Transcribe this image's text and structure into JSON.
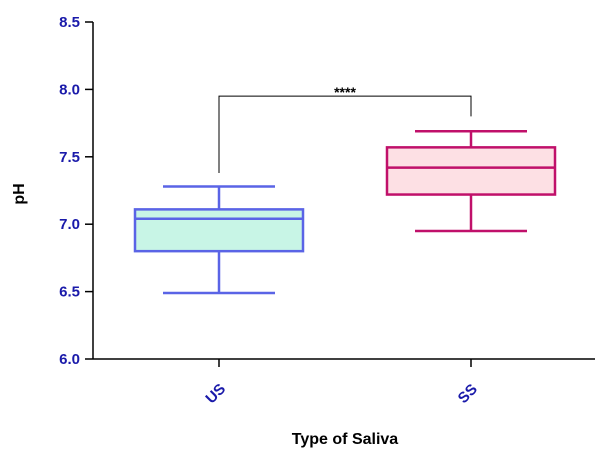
{
  "chart_data": {
    "type": "box",
    "title": "",
    "xlabel": "Type of Saliva",
    "ylabel": "pH",
    "ylim": [
      6.0,
      8.5
    ],
    "yticks": [
      "6.0",
      "6.5",
      "7.0",
      "7.5",
      "8.0",
      "8.5"
    ],
    "categories": [
      "US",
      "SS"
    ],
    "series": [
      {
        "category": "US",
        "min": 6.49,
        "q1": 6.8,
        "median": 7.04,
        "q3": 7.11,
        "max": 7.28,
        "fill": "#c8f5e6",
        "stroke": "#5a64e6"
      },
      {
        "category": "SS",
        "min": 6.95,
        "q1": 7.22,
        "median": 7.42,
        "q3": 7.57,
        "max": 7.69,
        "fill": "#fde0e4",
        "stroke": "#c0106a"
      }
    ],
    "annotation": {
      "label": "****",
      "between": [
        "US",
        "SS"
      ],
      "y": 7.95
    },
    "tick_label_color": "#1a1aaa",
    "grid": false
  }
}
